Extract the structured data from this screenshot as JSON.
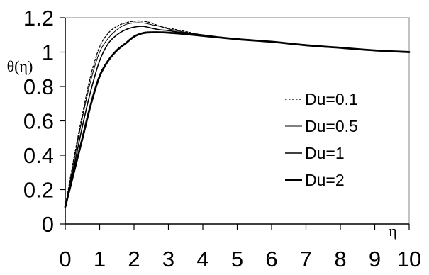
{
  "chart_data": {
    "type": "line",
    "xlabel": "η",
    "ylabel": "θ(η)",
    "xlim": [
      0,
      10
    ],
    "ylim": [
      0,
      1.2
    ],
    "x_ticks": [
      "0",
      "1",
      "2",
      "3",
      "4",
      "5",
      "6",
      "7",
      "8",
      "9",
      "10"
    ],
    "y_ticks": [
      "0",
      "0.2",
      "0.4",
      "0.6",
      "0.8",
      "1",
      "1.2"
    ],
    "grid": false,
    "legend_position": "right",
    "series": [
      {
        "name": "Du=0.1",
        "style": "dotted",
        "x": [
          0,
          0.25,
          0.5,
          0.75,
          1,
          1.25,
          1.5,
          1.75,
          2,
          2.25,
          2.5,
          2.75,
          3,
          3.5,
          4,
          5,
          6,
          7,
          8,
          9,
          10
        ],
        "y": [
          0.1,
          0.38,
          0.64,
          0.87,
          1.03,
          1.11,
          1.15,
          1.17,
          1.18,
          1.18,
          1.17,
          1.15,
          1.14,
          1.12,
          1.1,
          1.075,
          1.06,
          1.04,
          1.025,
          1.01,
          1.0
        ]
      },
      {
        "name": "Du=0.5",
        "style": "thin",
        "x": [
          0,
          0.25,
          0.5,
          0.75,
          1,
          1.25,
          1.5,
          1.75,
          2,
          2.25,
          2.5,
          2.75,
          3,
          3.5,
          4,
          5,
          6,
          7,
          8,
          9,
          10
        ],
        "y": [
          0.1,
          0.36,
          0.62,
          0.84,
          1.0,
          1.08,
          1.13,
          1.16,
          1.17,
          1.17,
          1.16,
          1.15,
          1.135,
          1.115,
          1.1,
          1.075,
          1.06,
          1.04,
          1.025,
          1.01,
          1.0
        ]
      },
      {
        "name": "Du=1",
        "style": "medium",
        "x": [
          0,
          0.25,
          0.5,
          0.75,
          1,
          1.25,
          1.5,
          1.75,
          2,
          2.25,
          2.5,
          2.75,
          3,
          3.5,
          4,
          5,
          6,
          7,
          8,
          9,
          10
        ],
        "y": [
          0.1,
          0.33,
          0.57,
          0.78,
          0.95,
          1.05,
          1.1,
          1.13,
          1.145,
          1.15,
          1.14,
          1.13,
          1.125,
          1.11,
          1.1,
          1.075,
          1.06,
          1.04,
          1.025,
          1.01,
          1.0
        ]
      },
      {
        "name": "Du=2",
        "style": "thick",
        "x": [
          0,
          0.25,
          0.5,
          0.75,
          1,
          1.25,
          1.5,
          1.75,
          2,
          2.25,
          2.5,
          2.75,
          3,
          3.5,
          4,
          5,
          6,
          7,
          8,
          9,
          10
        ],
        "y": [
          0.1,
          0.3,
          0.5,
          0.7,
          0.86,
          0.95,
          1.01,
          1.05,
          1.09,
          1.11,
          1.115,
          1.115,
          1.113,
          1.105,
          1.095,
          1.075,
          1.06,
          1.04,
          1.025,
          1.01,
          1.0
        ]
      }
    ]
  }
}
